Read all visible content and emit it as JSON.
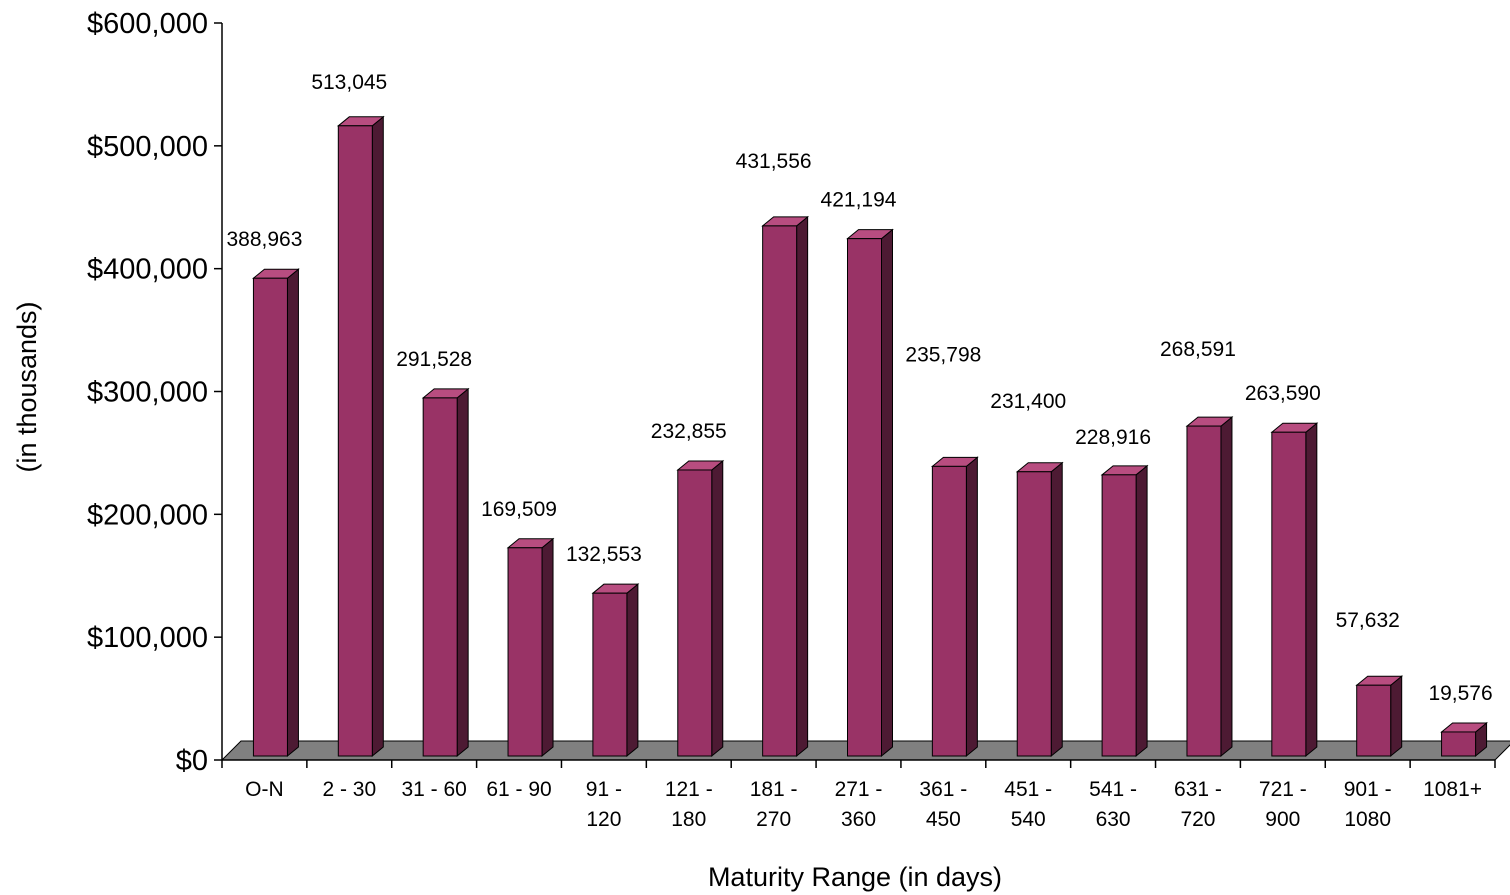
{
  "chart_data": {
    "type": "bar",
    "title": "",
    "xlabel": "Maturity Range (in days)",
    "ylabel": "(in thousands)",
    "ylim": [
      0,
      600000
    ],
    "y_ticks": [
      {
        "value": 0,
        "label": "$0"
      },
      {
        "value": 100000,
        "label": "$100,000"
      },
      {
        "value": 200000,
        "label": "$200,000"
      },
      {
        "value": 300000,
        "label": "$300,000"
      },
      {
        "value": 400000,
        "label": "$400,000"
      },
      {
        "value": 500000,
        "label": "$500,000"
      },
      {
        "value": 600000,
        "label": "$600,000"
      }
    ],
    "categories": [
      [
        "O-N"
      ],
      [
        "2 - 30"
      ],
      [
        "31 - 60"
      ],
      [
        "61 - 90"
      ],
      [
        "91 -",
        "120"
      ],
      [
        "121 -",
        "180"
      ],
      [
        "181 -",
        "270"
      ],
      [
        "271 -",
        "360"
      ],
      [
        "361 -",
        "450"
      ],
      [
        "451 -",
        "540"
      ],
      [
        "541 -",
        "630"
      ],
      [
        "631 -",
        "720"
      ],
      [
        "721 -",
        "900"
      ],
      [
        "901 -",
        "1080"
      ],
      [
        "1081+"
      ]
    ],
    "values": [
      388963,
      513045,
      291528,
      169509,
      132553,
      232855,
      431556,
      421194,
      235798,
      231400,
      228916,
      268591,
      263590,
      57632,
      19576
    ],
    "value_labels": [
      "388,963",
      "513,045",
      "291,528",
      "169,509",
      "132,553",
      "232,855",
      "431,556",
      "421,194",
      "235,798",
      "231,400",
      "228,916",
      "268,591",
      "263,590",
      "57,632",
      "19,576"
    ],
    "grid": false,
    "legend": "none",
    "colors": {
      "bar_front": "#993366",
      "bar_side": "#4d1a33",
      "bar_top": "#b84d80",
      "floor": "#808080",
      "axis": "#000000"
    }
  }
}
